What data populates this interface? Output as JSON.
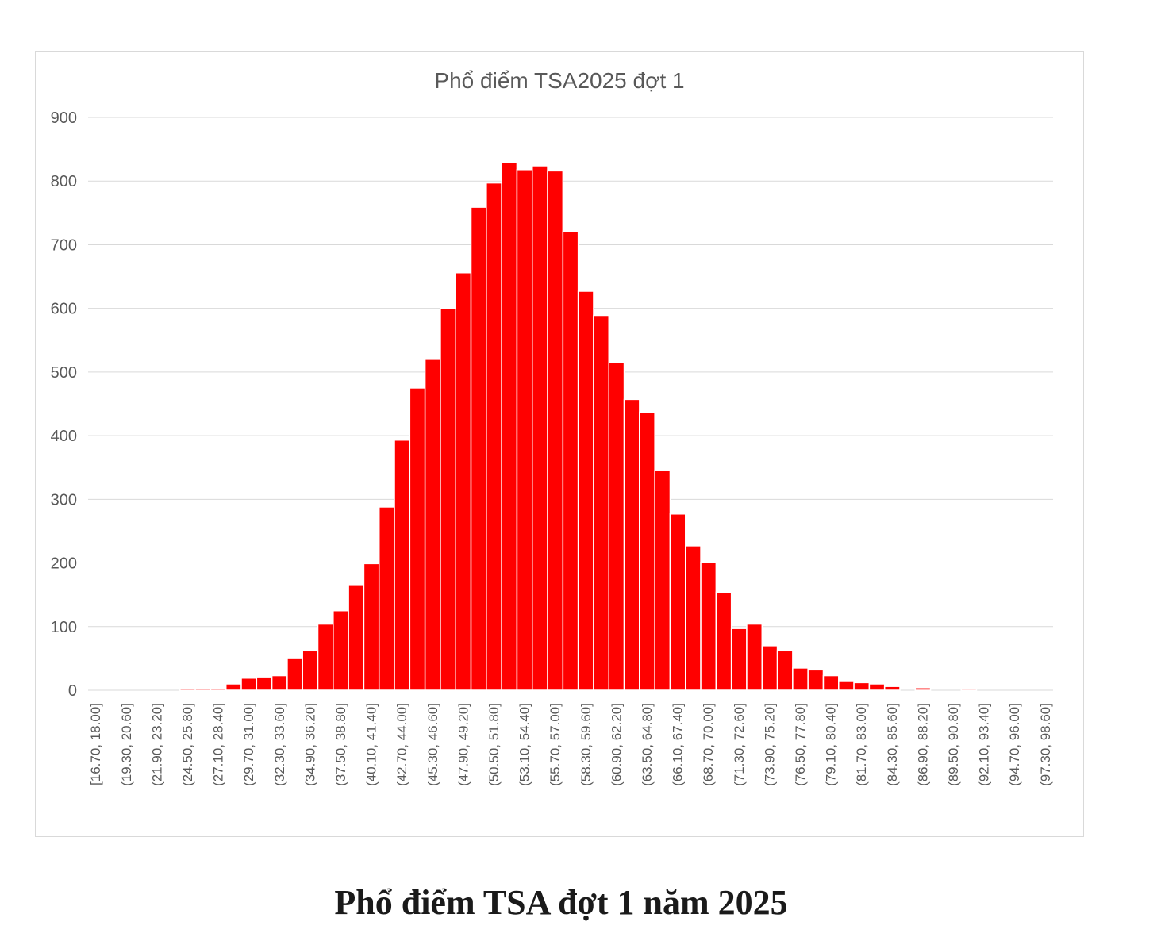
{
  "caption": "Phổ điểm TSA đợt 1 năm 2025",
  "chart_data": {
    "type": "bar",
    "title": "Phổ điểm TSA2025 đợt 1",
    "xlabel": "",
    "ylabel": "",
    "ylim": [
      0,
      900
    ],
    "yticks": [
      0,
      100,
      200,
      300,
      400,
      500,
      600,
      700,
      800,
      900
    ],
    "grid": true,
    "bar_color": "#ff0000",
    "categories": [
      "[16.70, 18.00]",
      "(18.00, 19.30]",
      "(19.30, 20.60]",
      "(20.60, 21.90]",
      "(21.90, 23.20]",
      "(23.20, 24.50]",
      "(24.50, 25.80]",
      "(25.80, 27.10]",
      "(27.10, 28.40]",
      "(28.40, 29.70]",
      "(29.70, 31.00]",
      "(31.00, 32.30]",
      "(32.30, 33.60]",
      "(33.60, 34.90]",
      "(34.90, 36.20]",
      "(36.20, 37.50]",
      "(37.50, 38.80]",
      "(38.80, 40.10]",
      "(40.10, 41.40]",
      "(41.40, 42.70]",
      "(42.70, 44.00]",
      "(44.00, 45.30]",
      "(45.30, 46.60]",
      "(46.60, 47.90]",
      "(47.90, 49.20]",
      "(49.20, 50.50]",
      "(50.50, 51.80]",
      "(51.80, 53.10]",
      "(53.10, 54.40]",
      "(54.40, 55.70]",
      "(55.70, 57.00]",
      "(57.00, 58.30]",
      "(58.30, 59.60]",
      "(59.60, 60.90]",
      "(60.90, 62.20]",
      "(62.20, 63.50]",
      "(63.50, 64.80]",
      "(64.80, 66.10]",
      "(66.10, 67.40]",
      "(67.40, 68.70]",
      "(68.70, 70.00]",
      "(70.00, 71.30]",
      "(71.30, 72.60]",
      "(72.60, 73.90]",
      "(73.90, 75.20]",
      "(75.20, 76.50]",
      "(76.50, 77.80]",
      "(77.80, 79.10]",
      "(79.10, 80.40]",
      "(80.40, 81.70]",
      "(81.70, 83.00]",
      "(83.00, 84.30]",
      "(84.30, 85.60]",
      "(85.60, 86.90]",
      "(86.90, 88.20]",
      "(88.20, 89.50]",
      "(89.50, 90.80]",
      "(90.80, 92.10]",
      "(92.10, 93.40]",
      "(93.40, 94.70]",
      "(94.70, 96.00]",
      "(96.00, 97.30]",
      "(97.30, 98.60]"
    ],
    "tick_labels": [
      "[16.70, 18.00]",
      "(19.30, 20.60]",
      "(21.90, 23.20]",
      "(24.50, 25.80]",
      "(27.10, 28.40]",
      "(29.70, 31.00]",
      "(32.30, 33.60]",
      "(34.90, 36.20]",
      "(37.50, 38.80]",
      "(40.10, 41.40]",
      "(42.70, 44.00]",
      "(45.30, 46.60]",
      "(47.90, 49.20]",
      "(50.50, 51.80]",
      "(53.10, 54.40]",
      "(55.70, 57.00]",
      "(58.30, 59.60]",
      "(60.90, 62.20]",
      "(63.50, 64.80]",
      "(66.10, 67.40]",
      "(68.70, 70.00]",
      "(71.30, 72.60]",
      "(73.90, 75.20]",
      "(76.50, 77.80]",
      "(79.10, 80.40]",
      "(81.70, 83.00]",
      "(84.30, 85.60]",
      "(86.90, 88.20]",
      "(89.50, 90.80]",
      "(92.10, 93.40]",
      "(94.70, 96.00]",
      "(97.30, 98.60]"
    ],
    "values": [
      0,
      0,
      0,
      0,
      0,
      0,
      3,
      3,
      3,
      10,
      19,
      21,
      23,
      51,
      62,
      104,
      125,
      166,
      199,
      288,
      393,
      475,
      520,
      600,
      656,
      759,
      797,
      829,
      818,
      824,
      816,
      721,
      627,
      589,
      515,
      457,
      437,
      345,
      277,
      227,
      201,
      154,
      97,
      104,
      70,
      62,
      35,
      32,
      23,
      15,
      12,
      10,
      6,
      0,
      4,
      0,
      0,
      2,
      0,
      0,
      0,
      0,
      0
    ]
  }
}
